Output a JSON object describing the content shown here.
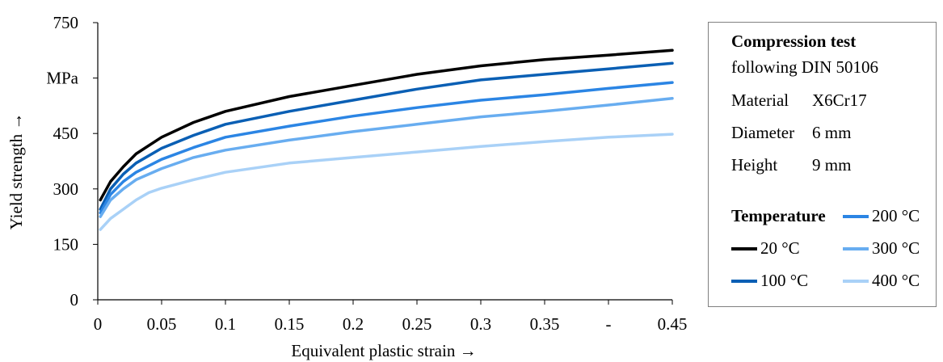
{
  "chart_data": {
    "type": "line",
    "xlabel": "Equivalent plastic strain →",
    "ylabel": "Yield strength →",
    "xlim": [
      0,
      0.45
    ],
    "ylim": [
      0,
      750
    ],
    "x_ticks": [
      "0",
      "0.05",
      "0.1",
      "0.15",
      "0.2",
      "0.25",
      "0.3",
      "0.35",
      "-",
      "0.45"
    ],
    "y_ticks": [
      "0",
      "150",
      "300",
      "450",
      "MPa",
      "750"
    ],
    "grid": false,
    "legend_position": "right",
    "series": [
      {
        "name": "20 °C",
        "color": "#000000",
        "x": [
          0.002,
          0.01,
          0.02,
          0.03,
          0.05,
          0.075,
          0.1,
          0.15,
          0.2,
          0.25,
          0.3,
          0.35,
          0.4,
          0.45
        ],
        "y": [
          270,
          320,
          360,
          395,
          440,
          480,
          510,
          550,
          580,
          610,
          633,
          650,
          662,
          675
        ]
      },
      {
        "name": "100 °C",
        "color": "#0a5fb4",
        "x": [
          0.002,
          0.01,
          0.02,
          0.03,
          0.05,
          0.075,
          0.1,
          0.15,
          0.2,
          0.25,
          0.3,
          0.35,
          0.4,
          0.45
        ],
        "y": [
          245,
          300,
          340,
          370,
          410,
          445,
          475,
          510,
          540,
          570,
          595,
          610,
          625,
          640
        ]
      },
      {
        "name": "200 °C",
        "color": "#2b85e4",
        "x": [
          0.002,
          0.01,
          0.02,
          0.03,
          0.05,
          0.075,
          0.1,
          0.15,
          0.2,
          0.25,
          0.3,
          0.35,
          0.4,
          0.45
        ],
        "y": [
          235,
          285,
          320,
          345,
          380,
          412,
          440,
          470,
          497,
          520,
          540,
          555,
          572,
          588
        ]
      },
      {
        "name": "300 °C",
        "color": "#68adf0",
        "x": [
          0.002,
          0.01,
          0.02,
          0.03,
          0.05,
          0.075,
          0.1,
          0.15,
          0.2,
          0.25,
          0.3,
          0.35,
          0.4,
          0.45
        ],
        "y": [
          225,
          270,
          300,
          325,
          355,
          385,
          405,
          432,
          455,
          475,
          495,
          510,
          527,
          545
        ]
      },
      {
        "name": "400 °C",
        "color": "#a9d1f7",
        "x": [
          0.002,
          0.01,
          0.02,
          0.03,
          0.04,
          0.05,
          0.075,
          0.1,
          0.15,
          0.2,
          0.25,
          0.3,
          0.35,
          0.4,
          0.45
        ],
        "y": [
          190,
          220,
          245,
          270,
          290,
          302,
          325,
          345,
          370,
          385,
          400,
          415,
          428,
          440,
          448
        ]
      }
    ]
  },
  "legend": {
    "title": "Compression test",
    "subtitle": "following DIN 50106",
    "rows": [
      {
        "key": "Material",
        "value": "X6Cr17"
      },
      {
        "key": "Diameter",
        "value": "6 mm"
      },
      {
        "key": "Height",
        "value": "9 mm"
      }
    ],
    "temperature_title": "Temperature"
  }
}
